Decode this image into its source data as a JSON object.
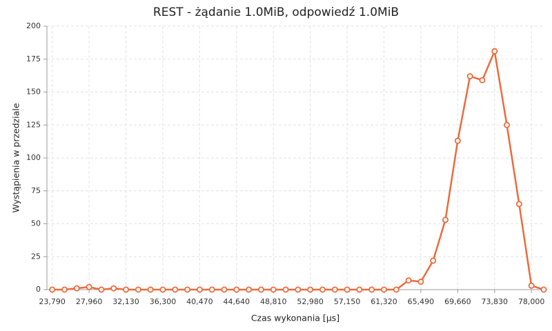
{
  "chart_data": {
    "type": "line",
    "title": "REST - żądanie 1.0MiB, odpowiedź 1.0MiB",
    "x_label": "Czas wykonania [µs]",
    "y_label": "Wystąpienia w przedziale",
    "x": [
      23790,
      25180,
      26570,
      27960,
      29350,
      30740,
      32130,
      33520,
      34910,
      36300,
      37690,
      39080,
      40470,
      41860,
      43250,
      44640,
      46030,
      47420,
      48810,
      50200,
      51590,
      52980,
      54370,
      55760,
      57150,
      58540,
      59930,
      61320,
      62710,
      64100,
      65490,
      66880,
      68270,
      69660,
      71050,
      72440,
      73830,
      75220,
      76610,
      78000,
      79390
    ],
    "series": [
      {
        "name": "REST",
        "color": "#ec6a3b",
        "values": [
          0,
          0,
          1,
          2,
          0,
          1,
          0,
          0,
          0,
          0,
          0,
          0,
          0,
          0,
          0,
          0,
          0,
          0,
          0,
          0,
          0,
          0,
          0,
          0,
          0,
          0,
          0,
          0,
          0,
          7,
          6,
          22,
          53,
          113,
          162,
          159,
          181,
          125,
          65,
          3,
          0
        ]
      }
    ],
    "xlim": [
      23190,
      79390
    ],
    "xticks": [
      {
        "value": 23790,
        "label": "23,790"
      },
      {
        "value": 27960,
        "label": "27,960"
      },
      {
        "value": 32130,
        "label": "32,130"
      },
      {
        "value": 36300,
        "label": "36,300"
      },
      {
        "value": 40470,
        "label": "40,470"
      },
      {
        "value": 44640,
        "label": "44,640"
      },
      {
        "value": 48810,
        "label": "48,810"
      },
      {
        "value": 52980,
        "label": "52,980"
      },
      {
        "value": 57150,
        "label": "57,150"
      },
      {
        "value": 61320,
        "label": "61,320"
      },
      {
        "value": 65490,
        "label": "65,490"
      },
      {
        "value": 69660,
        "label": "69,660"
      },
      {
        "value": 73830,
        "label": "73,830"
      },
      {
        "value": 78000,
        "label": "78,000"
      }
    ],
    "ylim": [
      0,
      200
    ],
    "yticks": [
      0,
      25,
      50,
      75,
      100,
      125,
      150,
      175,
      200
    ],
    "grid": true
  }
}
